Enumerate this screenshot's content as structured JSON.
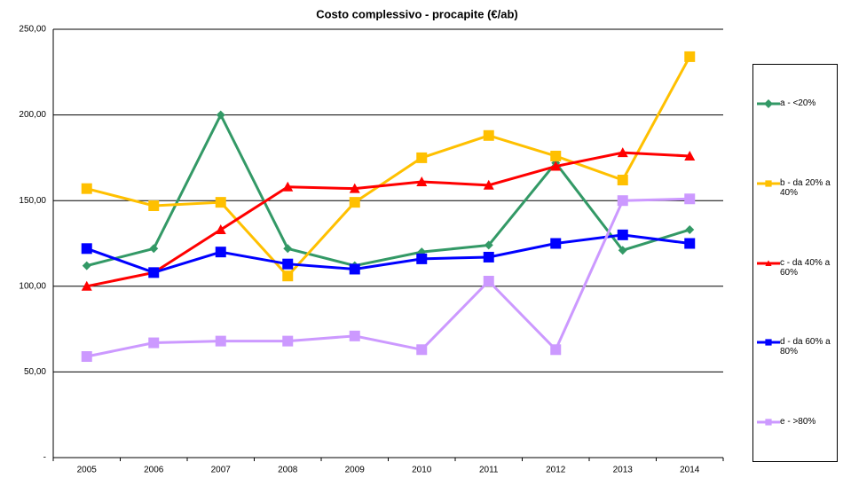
{
  "chart_data": {
    "type": "line",
    "title": "Costo complessivo - procapite (€/ab)",
    "categories": [
      "2005",
      "2006",
      "2007",
      "2008",
      "2009",
      "2010",
      "2011",
      "2012",
      "2013",
      "2014"
    ],
    "ylim": [
      0,
      250
    ],
    "yticks": [
      {
        "value": 0,
        "label": "-"
      },
      {
        "value": 50,
        "label": "50,00"
      },
      {
        "value": 100,
        "label": "100,00"
      },
      {
        "value": 150,
        "label": "150,00"
      },
      {
        "value": 200,
        "label": "200,00"
      },
      {
        "value": 250,
        "label": "250,00"
      }
    ],
    "grid": true,
    "legend": "right",
    "series": [
      {
        "name": "a - <20%",
        "color": "#339966",
        "marker": "diamond",
        "values": [
          112,
          122,
          200,
          122,
          112,
          120,
          124,
          172,
          121,
          133
        ]
      },
      {
        "name": "b - da 20% a 40%",
        "color": "#ffc000",
        "marker": "square",
        "values": [
          157,
          147,
          149,
          106,
          149,
          175,
          188,
          176,
          162,
          234
        ]
      },
      {
        "name": "c - da 40% a 60%",
        "color": "#ff0000",
        "marker": "triangle",
        "values": [
          100,
          108,
          133,
          158,
          157,
          161,
          159,
          170,
          178,
          176
        ]
      },
      {
        "name": "d - da 60% a 80%",
        "color": "#0000ff",
        "marker": "square",
        "values": [
          122,
          108,
          120,
          113,
          110,
          116,
          117,
          125,
          130,
          125
        ]
      },
      {
        "name": "e - >80%",
        "color": "#cc99ff",
        "marker": "square",
        "values": [
          59,
          67,
          68,
          68,
          71,
          63,
          103,
          63,
          150,
          151
        ]
      }
    ]
  }
}
